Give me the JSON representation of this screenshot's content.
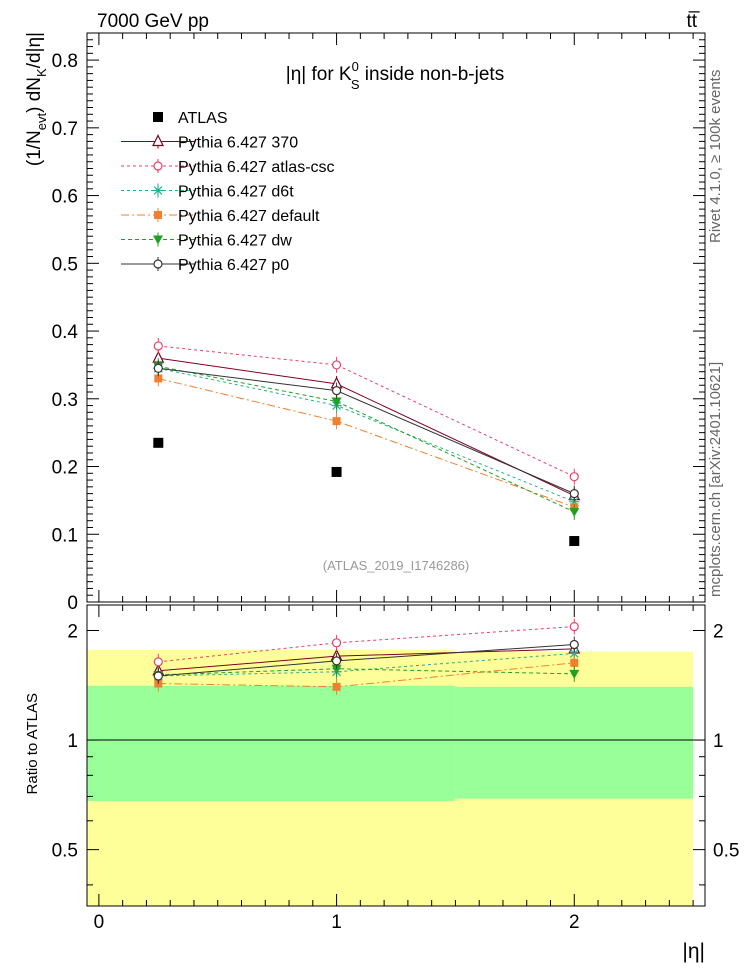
{
  "header": {
    "left": "7000 GeV pp",
    "right": "tt̅"
  },
  "chart_data": {
    "type": "line",
    "title": "|η| for K",
    "title_sup": "0",
    "title_sub": "S",
    "title_suffix": " inside non-b-jets",
    "ylabel": {
      "a": "(1/N",
      "sub1": "evt",
      "b": ") dN",
      "sub2": "K",
      "c": "/d|η|"
    },
    "xlabel": "|η|",
    "ratio_ylabel": "Ratio to ATLAS",
    "watermark": "(ATLAS_2019_I1746286)",
    "side_text_1": "Rivet 4.1.0, ≥ 100k events",
    "side_text_2": "mcplots.cern.ch [arXiv:2401.10621]",
    "x": [
      0.25,
      1.0,
      2.0
    ],
    "xlim": [
      -0.05,
      2.55
    ],
    "ylim_main": [
      0,
      0.84
    ],
    "ylim_ratio": [
      0.35,
      2.35
    ],
    "x_ticks": [
      "0",
      "1",
      "2"
    ],
    "y_ticks_main": [
      "0",
      "0.1",
      "0.2",
      "0.3",
      "0.4",
      "0.5",
      "0.6",
      "0.7",
      "0.8"
    ],
    "y_ticks_ratio": [
      "0.5",
      "1",
      "2"
    ],
    "atlas": {
      "name": "ATLAS",
      "values": [
        0.235,
        0.192,
        0.09
      ]
    },
    "band_yellow": [
      {
        "x0": -0.05,
        "x1": 1.5,
        "lo": 0.35,
        "hi": 1.77
      },
      {
        "x0": 1.5,
        "x1": 2.5,
        "lo": 0.35,
        "hi": 1.75
      }
    ],
    "band_green": [
      {
        "x0": -0.05,
        "x1": 1.5,
        "lo": 0.68,
        "hi": 1.41
      },
      {
        "x0": 1.5,
        "x1": 2.5,
        "lo": 0.69,
        "hi": 1.4
      }
    ],
    "series": [
      {
        "name": "Pythia 6.427 370",
        "color": "#800020",
        "dash": "",
        "marker": "triangle-open",
        "values": [
          0.36,
          0.322,
          0.157
        ],
        "ratio": [
          1.55,
          1.7,
          1.78
        ]
      },
      {
        "name": "Pythia 6.427 atlas-csc",
        "color": "#e8406a",
        "dash": "3,3",
        "marker": "circle-open",
        "values": [
          0.378,
          0.35,
          0.185
        ],
        "ratio": [
          1.64,
          1.85,
          2.05
        ]
      },
      {
        "name": "Pythia 6.427 d6t",
        "color": "#20b090",
        "dash": "3,3",
        "marker": "star",
        "values": [
          0.345,
          0.29,
          0.148
        ],
        "ratio": [
          1.5,
          1.54,
          1.73
        ]
      },
      {
        "name": "Pythia 6.427 default",
        "color": "#f08030",
        "dash": "8,3,2,3",
        "marker": "square",
        "values": [
          0.33,
          0.267,
          0.14
        ],
        "ratio": [
          1.43,
          1.4,
          1.63
        ]
      },
      {
        "name": "Pythia 6.427 dw",
        "color": "#20a020",
        "dash": "4,3",
        "marker": "triangle-down",
        "values": [
          0.348,
          0.296,
          0.133
        ],
        "ratio": [
          1.51,
          1.57,
          1.52
        ]
      },
      {
        "name": "Pythia 6.427 p0",
        "color": "#333333",
        "dash": "",
        "marker": "circle-open",
        "values": [
          0.345,
          0.312,
          0.16
        ],
        "ratio": [
          1.5,
          1.65,
          1.83
        ]
      }
    ]
  }
}
